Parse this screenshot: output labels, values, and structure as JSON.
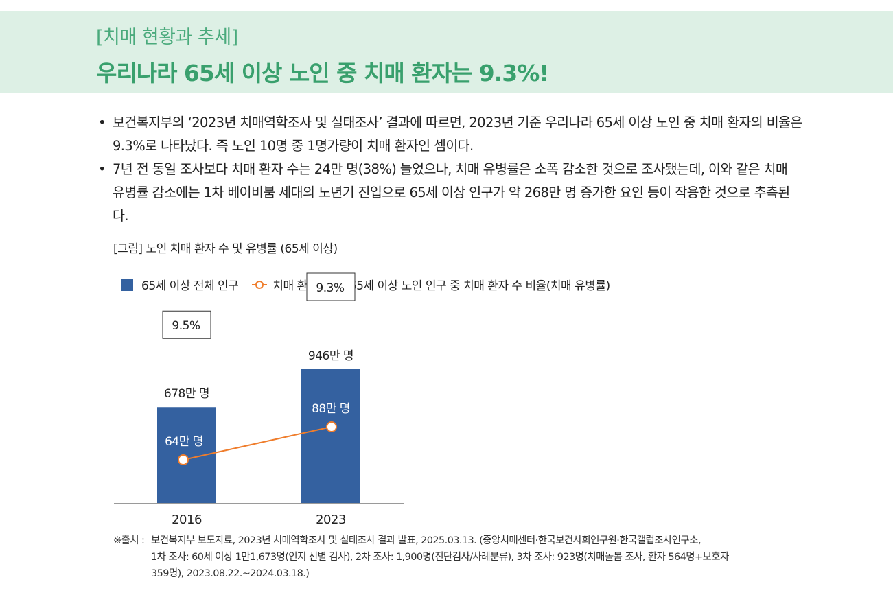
{
  "header": {
    "kicker": "[치매 현황과 추세]",
    "title": "우리나라 65세 이상 노인 중 치매 환자는 9.3%!"
  },
  "bullets": [
    "보건복지부의 ‘2023년 치매역학조사 및 실태조사’ 결과에 따르면, 2023년 기준 우리나라 65세 이상 노인 중 치매 환자의 비율은 9.3%로 나타났다. 즉 노인 10명 중 1명가량이 치매 환자인 셈이다.",
    "7년 전 동일 조사보다 치매 환자 수는 24만 명(38%) 늘었으나, 치매 유병률은 소폭 감소한 것으로 조사됐는데, 이와 같은 치매 유병률 감소에는 1차 베이비붐 세대의 노년기 진입으로 65세 이상 인구가 약 268만 명 증가한 요인 등이 작용한 것으로 추측된다."
  ],
  "bullet_marker": "•",
  "figure_caption": "[그림] 노인 치매 환자 수 및 유병률 (65세 이상)",
  "legend": {
    "bar": "65세 이상 전체 인구",
    "line": "치매 환자",
    "box": "65세 이상 노인 인구 중 치매 환자 수 비율(치매 유병률)"
  },
  "colors": {
    "bar": "#3461a0",
    "line": "#ef7d2c",
    "banner_bg": "#ddf0e5",
    "banner_text": "#39a06d"
  },
  "chart_data": {
    "type": "bar",
    "categories": [
      "2016",
      "2023"
    ],
    "series": [
      {
        "name": "65세 이상 전체 인구",
        "kind": "bar",
        "values": [
          678,
          946
        ],
        "labels": [
          "678만 명",
          "946만 명"
        ]
      },
      {
        "name": "치매 환자",
        "kind": "line",
        "values": [
          64,
          88
        ],
        "labels": [
          "64만 명",
          "88만 명"
        ]
      }
    ],
    "prevalence": {
      "values": [
        9.5,
        9.3
      ],
      "labels": [
        "9.5%",
        "9.3%"
      ]
    },
    "unit": "만 명"
  },
  "source": {
    "prefix": "※출처 :",
    "lines": [
      "보건복지부 보도자료, 2023년 치매역학조사 및 실태조사 결과 발표, 2025.03.13. (중앙치매센터·한국보건사회연구원·한국갤럽조사연구소,",
      "1차 조사: 60세 이상 1만1,673명(인지 선별 검사), 2차 조사: 1,900명(진단검사/사례분류), 3차 조사: 923명(치매돌봄 조사, 환자 564명+보호자",
      "359명), 2023.08.22.~2024.03.18.)"
    ]
  }
}
